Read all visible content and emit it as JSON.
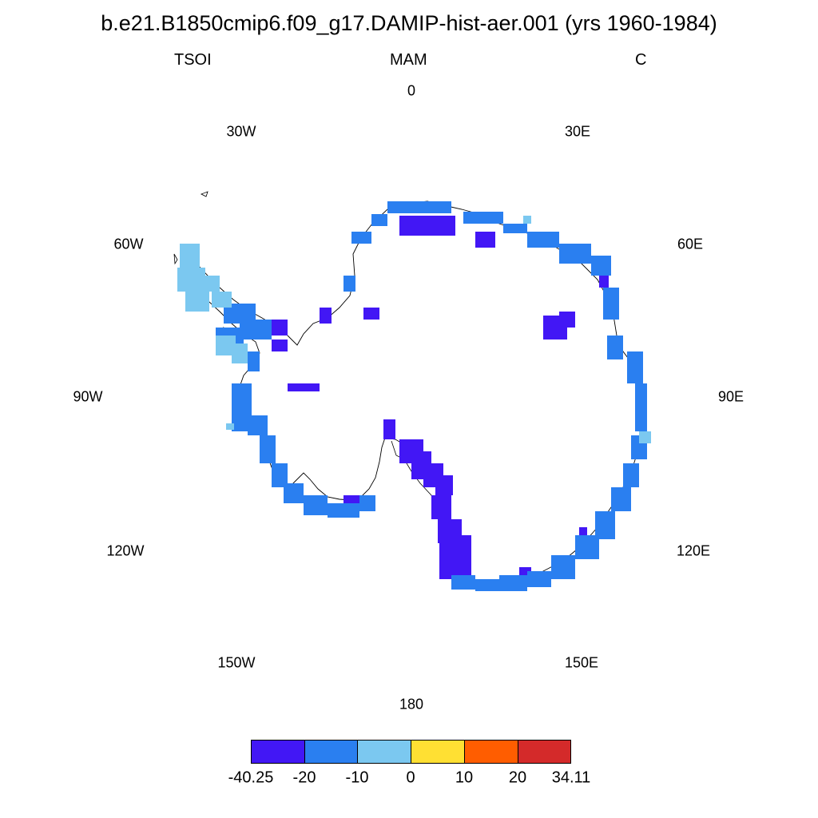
{
  "title": "b.e21.B1850cmip6.f09_g17.DAMIP-hist-aer.001 (yrs 1960-1984)",
  "variable": "TSOI",
  "season": "MAM",
  "units": "C",
  "longitude_labels": [
    "0",
    "30E",
    "60E",
    "90E",
    "120E",
    "150E",
    "180",
    "150W",
    "120W",
    "90W",
    "60W",
    "30W"
  ],
  "legend": {
    "colors": [
      "#4217f5",
      "#2a7ff0",
      "#7bc8f0",
      "#ffe033",
      "#ff5d00",
      "#d42a2a"
    ],
    "labels": [
      "-40.25",
      "-20",
      "-10",
      "0",
      "10",
      "20",
      "34.11"
    ]
  },
  "map_colors": {
    "strong_cool": "#4217f5",
    "cool": "#2a7ff0",
    "light_cool": "#7bc8f0",
    "coast": "#000000"
  }
}
